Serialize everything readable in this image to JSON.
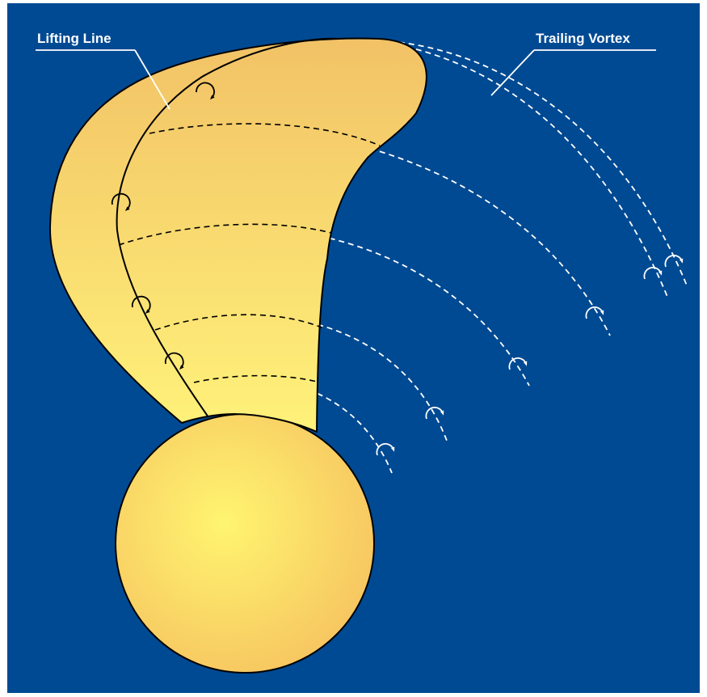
{
  "labels": {
    "lifting_line": "Lifting Line",
    "trailing_vortex": "Trailing Vortex"
  },
  "colors": {
    "background": "#004a93",
    "frame": "#ffffff",
    "blade_fill_top": "#f2c266",
    "blade_fill_bottom": "#fff27a",
    "hub_center": "#fff570",
    "hub_edge": "#f6c460",
    "outline": "#000000",
    "vortex_lines": "#ffffff"
  },
  "icons": [
    "circulation-arrow-icon",
    "vortex-swirl-icon"
  ]
}
